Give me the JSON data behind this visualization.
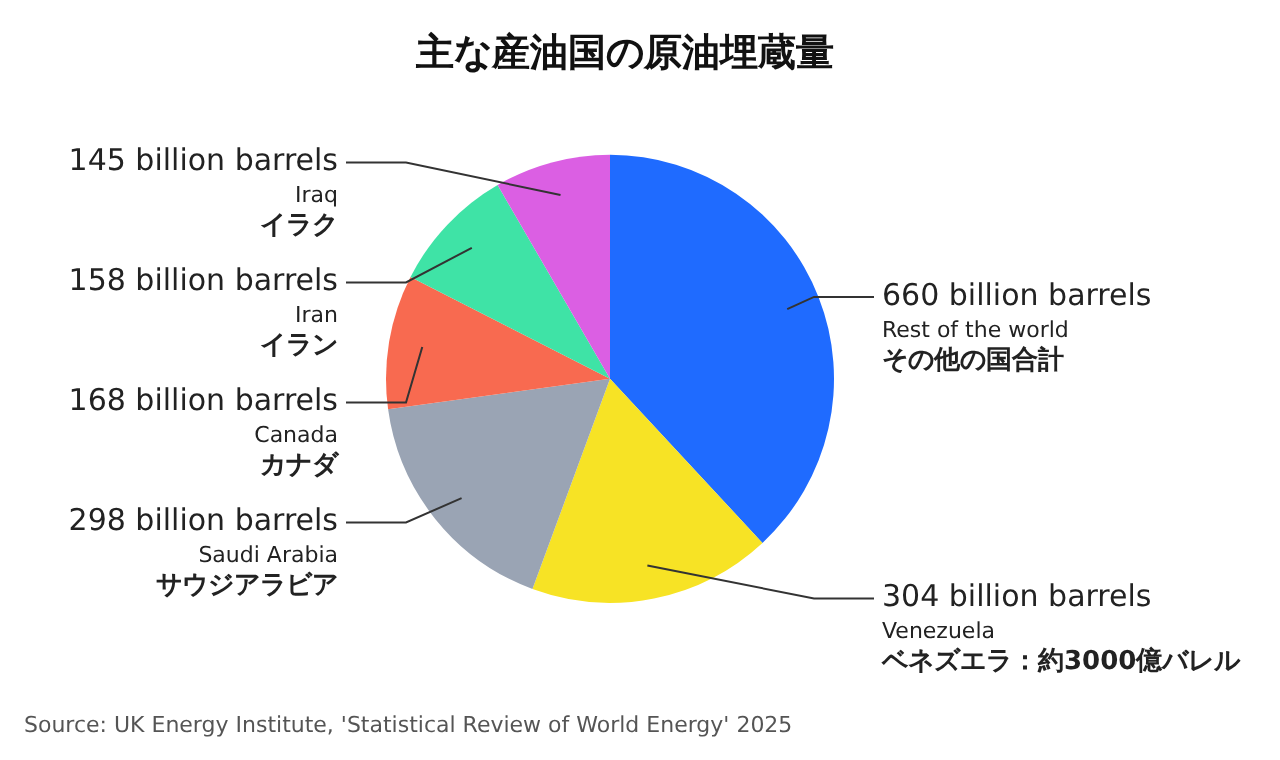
{
  "chart_data": {
    "type": "pie",
    "title": "主な産油国の原油埋蔵量",
    "categories": [
      "Rest of the world\nその他の国合計",
      "Venezuela\nベネズエラ：約3000億バレル",
      "Saudi Arabia\nサウジアラビア",
      "Canada\nカナダ",
      "Iran\nイラン",
      "Iraq\nイラク"
    ],
    "values": [
      660,
      304,
      298,
      168,
      158,
      145
    ],
    "value_labels": [
      "660 billion barrels",
      "304 billion barrels",
      "298 billion barrels",
      "168 billion barrels",
      "158 billion barrels",
      "145 billion barrels"
    ],
    "colors": [
      "#1f6bff",
      "#f7e325",
      "#9aa4b4",
      "#f86a50",
      "#3fe3a6",
      "#db5fe3"
    ],
    "legend": false,
    "annotations": [
      "Source: UK Energy Institute, 'Statistical Review of World Energy' 2025"
    ]
  }
}
